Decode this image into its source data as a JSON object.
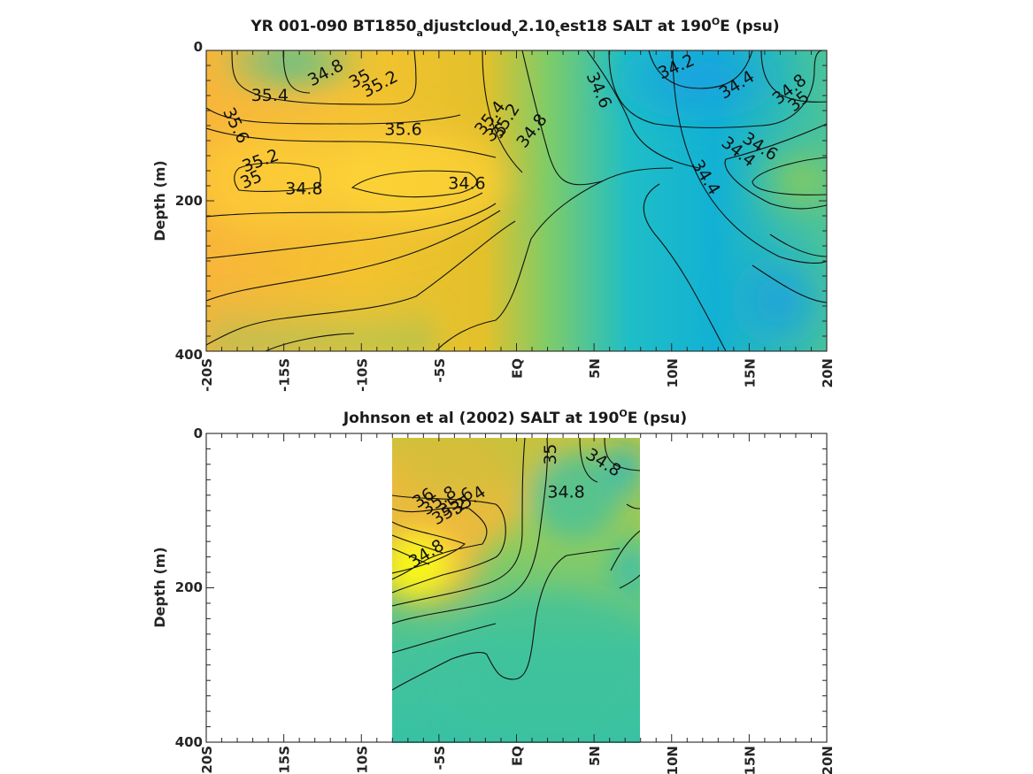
{
  "chart_data": [
    {
      "type": "heatmap",
      "title": {
        "pre": "YR 001-090 BT1850",
        "sub1": "a",
        "mid1": "djustcloud",
        "sub2": "v",
        "mid2": "2.10",
        "sub3": "t",
        "mid3": "est18 SALT at 190",
        "sup": "O",
        "post": "E (psu)"
      },
      "ylabel": "Depth (m)",
      "xlim": [
        -20,
        20
      ],
      "ylim": [
        0,
        400
      ],
      "x_ticks": [
        -20,
        -15,
        -10,
        -5,
        0,
        5,
        10,
        15,
        20
      ],
      "x_tick_labels": [
        "-20S",
        "-15S",
        "-10S",
        "-5S",
        "EQ",
        "5N",
        "10N",
        "15N",
        "20N"
      ],
      "y_ticks": [
        0,
        200,
        400
      ],
      "y_tick_labels": [
        "0",
        "200",
        "400"
      ],
      "data_extent": [
        -20,
        20
      ],
      "colorscale": [
        "#1a9be0",
        "#0fb6c8",
        "#3cc39c",
        "#90cc5c",
        "#cbc234",
        "#f8b63a",
        "#fdd436",
        "#f7f81a"
      ],
      "color_range": [
        34.0,
        36.2
      ],
      "contour_labels": [
        {
          "text": "34.8",
          "x": -12.3,
          "d": 30,
          "rot": -28
        },
        {
          "text": "35",
          "x": -10.1,
          "d": 38,
          "rot": -28
        },
        {
          "text": "35.2",
          "x": -8.8,
          "d": 45,
          "rot": -28
        },
        {
          "text": "35.4",
          "x": -15.9,
          "d": 60,
          "rot": 0
        },
        {
          "text": "35.6",
          "x": -18.1,
          "d": 100,
          "rot": 64
        },
        {
          "text": "35.6",
          "x": -7.3,
          "d": 105,
          "rot": 0
        },
        {
          "text": "35.4",
          "x": -1.7,
          "d": 90,
          "rot": -52
        },
        {
          "text": "35.2",
          "x": -0.7,
          "d": 94,
          "rot": -58
        },
        {
          "text": "35",
          "x": -1.3,
          "d": 109,
          "rot": -30
        },
        {
          "text": "34.8",
          "x": 1.0,
          "d": 107,
          "rot": -52
        },
        {
          "text": "34.6",
          "x": 5.3,
          "d": 53,
          "rot": 66
        },
        {
          "text": "34.2",
          "x": 10.3,
          "d": 22,
          "rot": -24
        },
        {
          "text": "34.4",
          "x": 14.2,
          "d": 46,
          "rot": -32
        },
        {
          "text": "34.8",
          "x": 17.6,
          "d": 52,
          "rot": -38
        },
        {
          "text": "35",
          "x": 18.2,
          "d": 68,
          "rot": -38
        },
        {
          "text": "34.6",
          "x": 15.7,
          "d": 128,
          "rot": 32
        },
        {
          "text": "34.4",
          "x": 14.3,
          "d": 135,
          "rot": 38
        },
        {
          "text": "34.4",
          "x": 12.2,
          "d": 169,
          "rot": 58
        },
        {
          "text": "35.2",
          "x": -16.5,
          "d": 147,
          "rot": -20
        },
        {
          "text": "35",
          "x": -17.1,
          "d": 172,
          "rot": -24
        },
        {
          "text": "34.8",
          "x": -13.7,
          "d": 184,
          "rot": 0
        },
        {
          "text": "34.6",
          "x": -3.2,
          "d": 177,
          "rot": 0
        }
      ]
    },
    {
      "type": "heatmap",
      "title": {
        "pre": "Johnson et al (2002) SALT at 190",
        "sup": "O",
        "post": "E (psu)"
      },
      "ylabel": "Depth (m)",
      "xlim": [
        -20,
        20
      ],
      "ylim": [
        0,
        400
      ],
      "x_ticks": [
        -20,
        -15,
        -10,
        -5,
        0,
        5,
        10,
        15,
        20
      ],
      "x_tick_labels": [
        "-20S",
        "-15S",
        "-10S",
        "-5S",
        "EQ",
        "5N",
        "10N",
        "15N",
        "20N"
      ],
      "y_ticks": [
        0,
        200,
        400
      ],
      "y_tick_labels": [
        "0",
        "200",
        "400"
      ],
      "data_extent": [
        -8,
        8
      ],
      "colorscale": [
        "#1a9be0",
        "#0fb6c8",
        "#3cc39c",
        "#90cc5c",
        "#cbc234",
        "#f8b63a",
        "#fdd436",
        "#f7f81a"
      ],
      "color_range": [
        34.0,
        36.2
      ],
      "contour_labels": [
        {
          "text": "35",
          "x": 2.2,
          "d": 27,
          "rot": -90
        },
        {
          "text": "34.8",
          "x": 5.6,
          "d": 38,
          "rot": 32
        },
        {
          "text": "34.8",
          "x": 3.2,
          "d": 76,
          "rot": 0
        },
        {
          "text": "36",
          "x": -6.0,
          "d": 84,
          "rot": -34
        },
        {
          "text": "35.8",
          "x": -5.0,
          "d": 87,
          "rot": -34
        },
        {
          "text": "35.6",
          "x": -3.9,
          "d": 89,
          "rot": -34
        },
        {
          "text": "35.4",
          "x": -3.1,
          "d": 87,
          "rot": -34
        },
        {
          "text": "35.2",
          "x": -4.3,
          "d": 101,
          "rot": -30
        },
        {
          "text": "34.8",
          "x": -5.8,
          "d": 156,
          "rot": -32
        }
      ]
    }
  ]
}
